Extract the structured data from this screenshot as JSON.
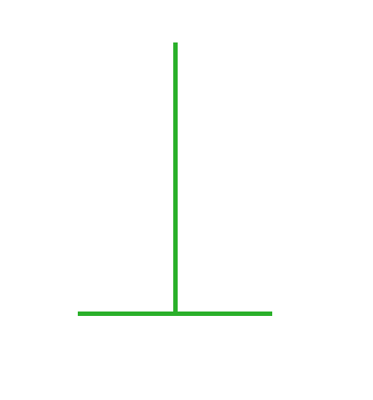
{
  "figure": {
    "stroke_color": "#2ab02a",
    "background_color": "#ffffff",
    "shape": "inverted-t"
  }
}
